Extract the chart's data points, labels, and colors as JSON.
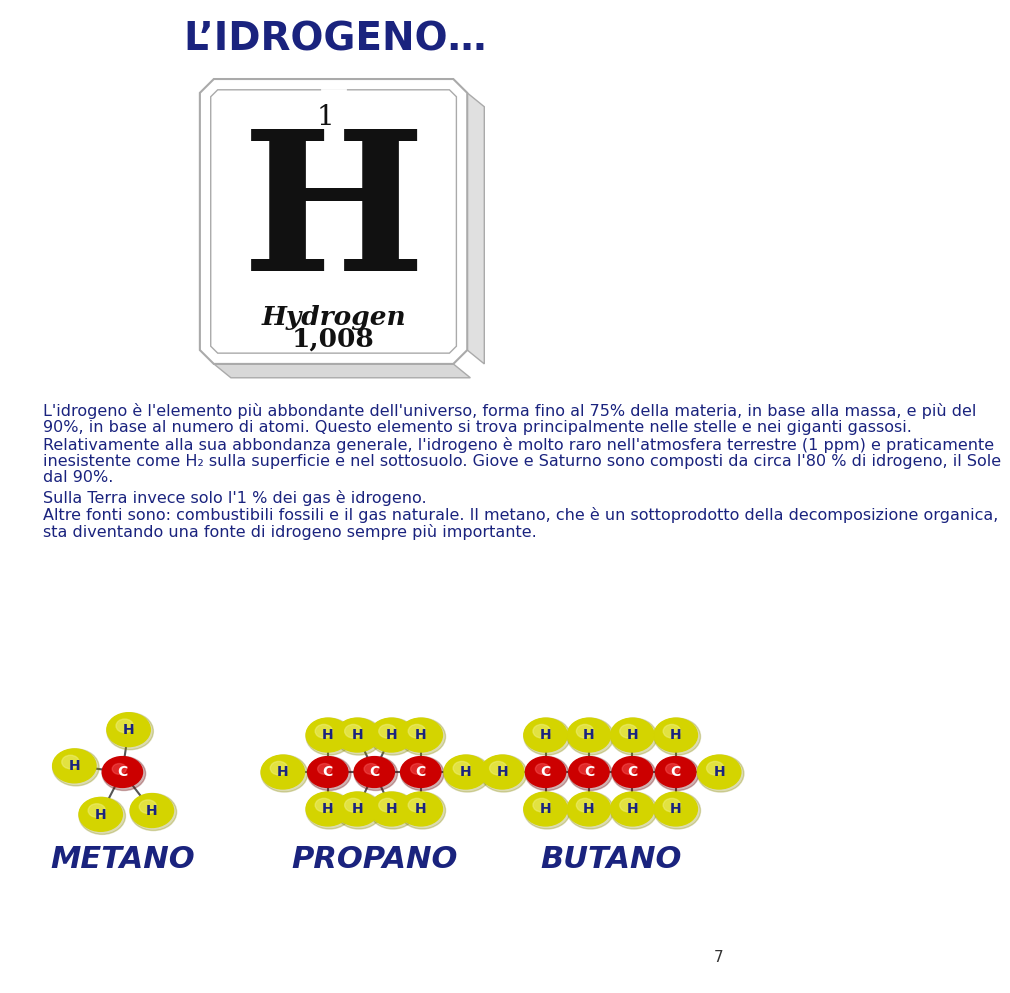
{
  "title": "L’IDROGENO…",
  "title_color": "#1a237e",
  "bg_color": "#ffffff",
  "text_color": "#1a237e",
  "element_number": "1",
  "element_symbol": "H",
  "element_name": "Hydrogen",
  "element_mass": "1,008",
  "label_metano": "METANO",
  "label_propano": "PROPANO",
  "label_butano": "BUTANO",
  "page_number": "7",
  "h_color": "#d4d400",
  "h_color_dark": "#a0a000",
  "c_color": "#cc0000",
  "c_color_dark": "#880000",
  "atom_label_color_h": "#1a237e",
  "atom_label_color_c": "#ffffff",
  "bond_color": "#555555",
  "para1_line1": "L'idrogeno è l'elemento più abbondante dell'universo, forma fino al 75% della materia, in base alla massa, e più del",
  "para1_line2": "90%, in base al numero di atomi. Questo elemento si trova principalmente nelle stelle e nei giganti gassosi.",
  "para1_line3": "Relativamente alla sua abbondanza generale, l'idrogeno è molto raro nell'atmosfera terrestre (1 ppm) e praticamente",
  "para1_line4": "inesistente come H₂ sulla superficie e nel sottosuolo. Giove e Saturno sono composti da circa l'80 % di idrogeno, il Sole",
  "para1_line5": "dal 90%.",
  "para2": "Sulla Terra invece solo l'1 % dei gas è idrogeno.",
  "para3_line1": "Altre fonti sono: combustibili fossili e il gas naturale. Il metano, che è un sottoprodotto della decomposizione organica,",
  "para3_line2": "sta diventando una fonte di idrogeno sempre più importante."
}
